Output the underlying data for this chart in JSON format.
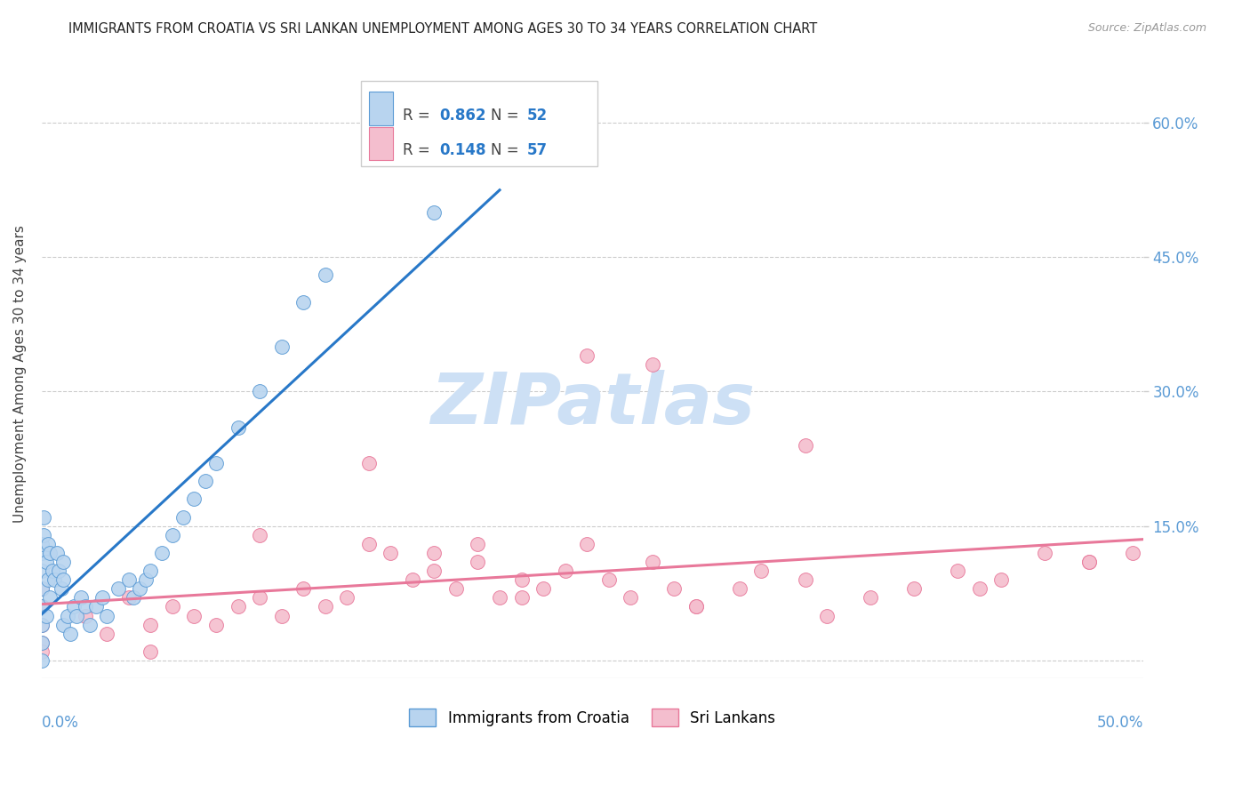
{
  "title": "IMMIGRANTS FROM CROATIA VS SRI LANKAN UNEMPLOYMENT AMONG AGES 30 TO 34 YEARS CORRELATION CHART",
  "source": "Source: ZipAtlas.com",
  "ylabel": "Unemployment Among Ages 30 to 34 years",
  "xlim": [
    0.0,
    0.505
  ],
  "ylim": [
    -0.02,
    0.66
  ],
  "y_ticks": [
    0.0,
    0.15,
    0.3,
    0.45,
    0.6
  ],
  "y_tick_labels": [
    "",
    "15.0%",
    "30.0%",
    "45.0%",
    "60.0%"
  ],
  "croatia_R": 0.862,
  "croatia_N": 52,
  "srilanka_R": 0.148,
  "srilanka_N": 57,
  "croatia_color": "#b8d4ef",
  "croatia_edge_color": "#5b9bd5",
  "croatia_line_color": "#2878c8",
  "srilanka_color": "#f4bece",
  "srilanka_edge_color": "#e8789a",
  "srilanka_line_color": "#e8789a",
  "background_color": "#ffffff",
  "grid_color": "#cccccc",
  "watermark_color": "#cde0f5",
  "title_color": "#222222",
  "source_color": "#999999",
  "axis_label_color": "#5b9bd5",
  "ylabel_color": "#444444",
  "legend_text_color": "#444444",
  "legend_num_color": "#2878c8",
  "croatia_x": [
    0.0,
    0.0,
    0.0,
    0.0,
    0.0,
    0.0,
    0.0,
    0.0,
    0.001,
    0.001,
    0.002,
    0.002,
    0.003,
    0.003,
    0.004,
    0.004,
    0.005,
    0.006,
    0.007,
    0.008,
    0.009,
    0.01,
    0.01,
    0.01,
    0.012,
    0.013,
    0.015,
    0.016,
    0.018,
    0.02,
    0.022,
    0.025,
    0.028,
    0.03,
    0.035,
    0.04,
    0.042,
    0.045,
    0.048,
    0.05,
    0.055,
    0.06,
    0.065,
    0.07,
    0.075,
    0.08,
    0.09,
    0.1,
    0.11,
    0.12,
    0.13,
    0.18
  ],
  "croatia_y": [
    0.0,
    0.02,
    0.04,
    0.06,
    0.08,
    0.1,
    0.12,
    0.13,
    0.14,
    0.16,
    0.05,
    0.11,
    0.09,
    0.13,
    0.07,
    0.12,
    0.1,
    0.09,
    0.12,
    0.1,
    0.08,
    0.11,
    0.09,
    0.04,
    0.05,
    0.03,
    0.06,
    0.05,
    0.07,
    0.06,
    0.04,
    0.06,
    0.07,
    0.05,
    0.08,
    0.09,
    0.07,
    0.08,
    0.09,
    0.1,
    0.12,
    0.14,
    0.16,
    0.18,
    0.2,
    0.22,
    0.26,
    0.3,
    0.35,
    0.4,
    0.43,
    0.5
  ],
  "srilanka_x": [
    0.0,
    0.0,
    0.0,
    0.0,
    0.0,
    0.02,
    0.03,
    0.04,
    0.05,
    0.06,
    0.07,
    0.08,
    0.09,
    0.1,
    0.11,
    0.12,
    0.13,
    0.14,
    0.15,
    0.16,
    0.17,
    0.18,
    0.19,
    0.2,
    0.21,
    0.22,
    0.23,
    0.24,
    0.25,
    0.26,
    0.27,
    0.28,
    0.29,
    0.3,
    0.32,
    0.33,
    0.35,
    0.38,
    0.4,
    0.42,
    0.44,
    0.46,
    0.48,
    0.5,
    0.15,
    0.25,
    0.35,
    0.1,
    0.2,
    0.3,
    0.05,
    0.18,
    0.22,
    0.36,
    0.43,
    0.48,
    0.28
  ],
  "srilanka_y": [
    0.02,
    0.04,
    0.06,
    0.08,
    0.01,
    0.05,
    0.03,
    0.07,
    0.04,
    0.06,
    0.05,
    0.04,
    0.06,
    0.07,
    0.05,
    0.08,
    0.06,
    0.07,
    0.13,
    0.12,
    0.09,
    0.1,
    0.08,
    0.11,
    0.07,
    0.09,
    0.08,
    0.1,
    0.13,
    0.09,
    0.07,
    0.11,
    0.08,
    0.06,
    0.08,
    0.1,
    0.09,
    0.07,
    0.08,
    0.1,
    0.09,
    0.12,
    0.11,
    0.12,
    0.22,
    0.34,
    0.24,
    0.14,
    0.13,
    0.06,
    0.01,
    0.12,
    0.07,
    0.05,
    0.08,
    0.11,
    0.33
  ]
}
